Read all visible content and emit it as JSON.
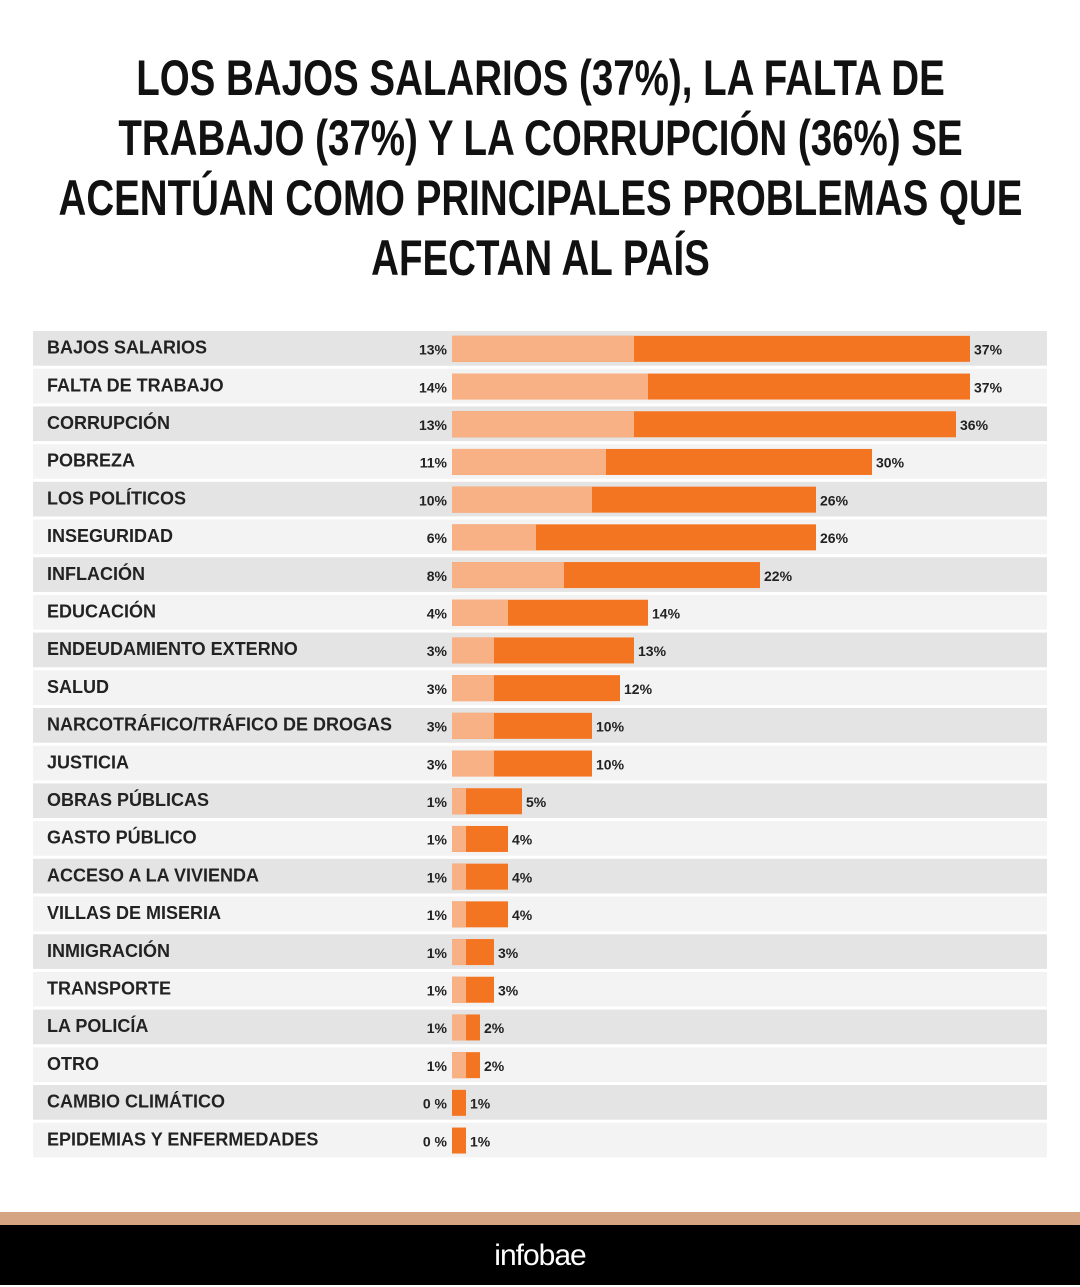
{
  "chart_data": {
    "type": "bar",
    "orientation": "horizontal",
    "title": "LOS BAJOS SALARIOS (37%), LA FALTA DE TRABAJO (37%) Y LA CORRUPCIÓN (36%) SE ACENTÚAN COMO PRINCIPALES PROBLEMAS QUE AFECTAN AL PAÍS",
    "categories": [
      "BAJOS SALARIOS",
      "FALTA DE TRABAJO",
      "CORRUPCIÓN",
      "POBREZA",
      "LOS POLÍTICOS",
      "INSEGURIDAD",
      "INFLACIÓN",
      "EDUCACIÓN",
      "ENDEUDAMIENTO EXTERNO",
      "SALUD",
      "NARCOTRÁFICO/TRÁFICO DE DROGAS",
      "JUSTICIA",
      "OBRAS PÚBLICAS",
      "GASTO PÚBLICO",
      "ACCESO A LA VIVIENDA",
      "VILLAS DE MISERIA",
      "INMIGRACIÓN",
      "TRANSPORTE",
      "LA POLICÍA",
      "OTRO",
      "CAMBIO CLIMÁTICO",
      "EPIDEMIAS Y ENFERMEDADES"
    ],
    "series": [
      {
        "color": "#f47521",
        "values": [
          37,
          37,
          36,
          30,
          26,
          26,
          22,
          14,
          13,
          12,
          10,
          10,
          5,
          4,
          4,
          4,
          3,
          3,
          2,
          2,
          1,
          1
        ],
        "value_labels": [
          "37%",
          "37%",
          "36%",
          "30%",
          "26%",
          "26%",
          "22%",
          "14%",
          "13%",
          "12%",
          "10%",
          "10%",
          "5%",
          "4%",
          "4%",
          "4%",
          "3%",
          "3%",
          "2%",
          "2%",
          "1%",
          "1%"
        ]
      },
      {
        "color": "#f7b184",
        "values": [
          13,
          14,
          13,
          11,
          10,
          6,
          8,
          4,
          3,
          3,
          3,
          3,
          1,
          1,
          1,
          1,
          1,
          1,
          1,
          1,
          0,
          0
        ],
        "value_labels": [
          "13%",
          "14%",
          "13%",
          "11%",
          "10%",
          "6%",
          "8%",
          "4%",
          "3%",
          "3%",
          "3%",
          "3%",
          "1%",
          "1%",
          "1%",
          "1%",
          "1%",
          "1%",
          "1%",
          "1%",
          "0 %",
          "0 %"
        ]
      }
    ]
  },
  "footer": {
    "brand": "infobae"
  }
}
